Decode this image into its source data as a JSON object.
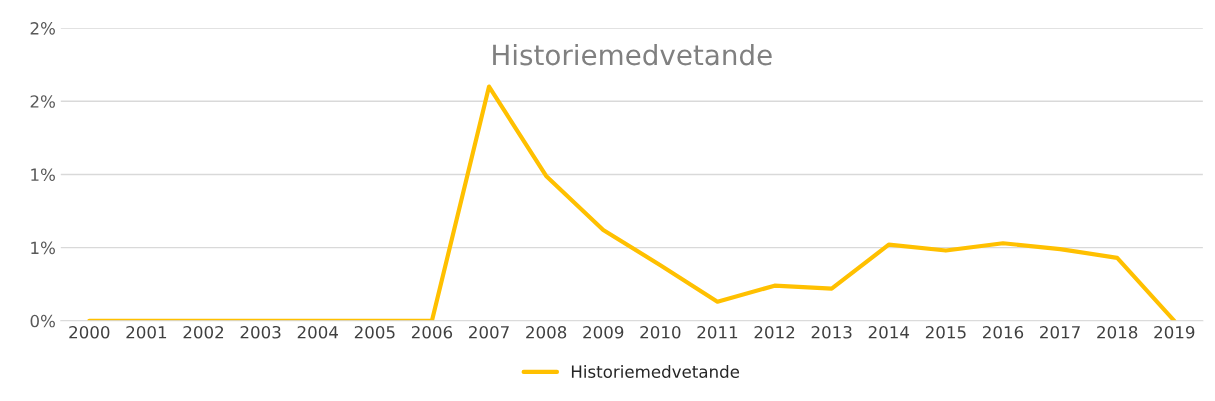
{
  "chart_data": {
    "type": "line",
    "title": "Historiemedvetande",
    "categories": [
      "2000",
      "2001",
      "2002",
      "2003",
      "2004",
      "2005",
      "2006",
      "2007",
      "2008",
      "2009",
      "2010",
      "2011",
      "2012",
      "2013",
      "2014",
      "2015",
      "2016",
      "2017",
      "2018",
      "2019"
    ],
    "series": [
      {
        "name": "Historiemedvetande",
        "color": "#ffc000",
        "values": [
          0,
          0,
          0,
          0,
          0,
          0,
          0,
          1.6,
          0.99,
          0.62,
          0.38,
          0.13,
          0.24,
          0.22,
          0.52,
          0.48,
          0.53,
          0.49,
          0.43,
          0
        ]
      }
    ],
    "ylim": [
      0,
      2.0
    ],
    "yticks": [
      {
        "value": 0,
        "label": "0%"
      },
      {
        "value": 0.5,
        "label": "1%"
      },
      {
        "value": 1.0,
        "label": "1%"
      },
      {
        "value": 1.5,
        "label": "2%"
      },
      {
        "value": 2.0,
        "label": "2%"
      }
    ],
    "grid": "y",
    "legend": "bottom",
    "marker": "none",
    "line_style": "solid"
  }
}
